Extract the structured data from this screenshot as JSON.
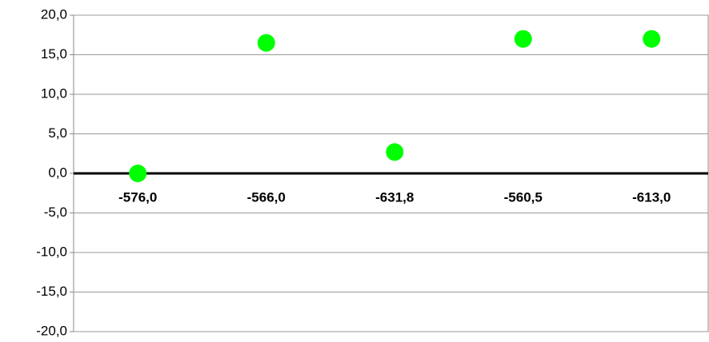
{
  "chart_data": {
    "type": "scatter",
    "categories": [
      "-576,0",
      "-566,0",
      "-631,8",
      "-560,5",
      "-613,0"
    ],
    "values": [
      0,
      16.5,
      2.7,
      17,
      17
    ],
    "color": "#00ff00",
    "ylim": [
      -20,
      20
    ],
    "yticks": [
      {
        "value": -20,
        "label": "-20,0"
      },
      {
        "value": -15,
        "label": "-15,0"
      },
      {
        "value": -10,
        "label": "-10,0"
      },
      {
        "value": -5,
        "label": "-5,0"
      },
      {
        "value": 0,
        "label": "0,0"
      },
      {
        "value": 5,
        "label": "5,0"
      },
      {
        "value": 10,
        "label": "10,0"
      },
      {
        "value": 15,
        "label": "15,0"
      },
      {
        "value": 20,
        "label": "20,0"
      }
    ],
    "grid": true
  }
}
